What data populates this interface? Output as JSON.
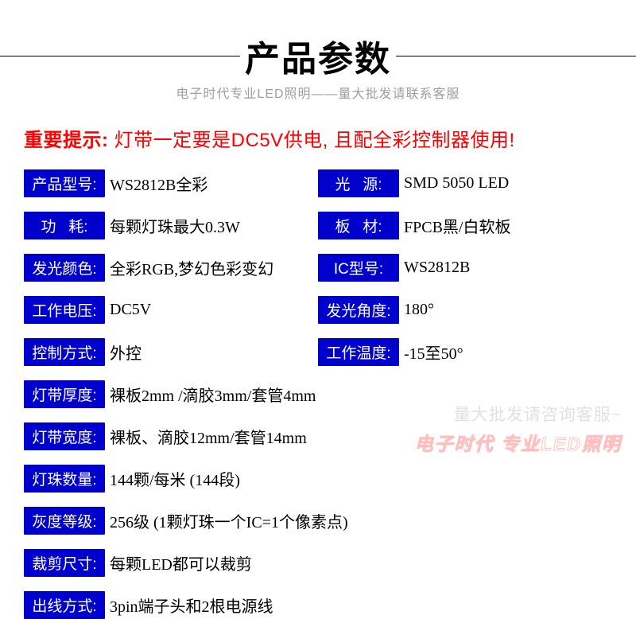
{
  "header": {
    "title": "产品参数",
    "subtitle": "电子时代专业LED照明——量大批发请联系客服"
  },
  "notice": {
    "lead": "重要提示: ",
    "body": "灯带一定要是DC5V供电, 且配全彩控制器使用!"
  },
  "specs": {
    "left": [
      {
        "label": "产品型号:",
        "value": "WS2812B全彩"
      },
      {
        "label": "功   耗:",
        "value": "每颗灯珠最大0.3W"
      },
      {
        "label": "发光颜色:",
        "value": "全彩RGB,梦幻色彩变幻"
      },
      {
        "label": "工作电压:",
        "value": "DC5V"
      },
      {
        "label": "控制方式:",
        "value": "外控"
      }
    ],
    "right": [
      {
        "label": "光   源:",
        "value": "SMD 5050 LED"
      },
      {
        "label": "板   材:",
        "value": "FPCB黑/白软板"
      },
      {
        "label": " IC型号: ",
        "value": "WS2812B"
      },
      {
        "label": "发光角度:",
        "value": "180°"
      },
      {
        "label": "工作温度:",
        "value": "-15至50°"
      }
    ],
    "full": [
      {
        "label": "灯带厚度:",
        "value": "裸板2mm  /滴胶3mm/套管4mm"
      },
      {
        "label": "灯带宽度:",
        "value": "裸板、滴胶12mm/套管14mm"
      },
      {
        "label": "灯珠数量:",
        "value": "144颗/每米 (144段)"
      },
      {
        "label": "灰度等级:",
        "value": "256级 (1颗灯珠一个IC=1个像素点)"
      },
      {
        "label": "裁剪尺寸:",
        "value": "每颗LED都可以裁剪"
      },
      {
        "label": "出线方式:",
        "value": " 3pin端子头和2根电源线"
      }
    ]
  },
  "watermark": {
    "line1": "量大批发请咨询客服~",
    "line2": "电子时代 专业LED照明"
  },
  "colors": {
    "label_bg": "#0000cc",
    "label_fg": "#ffffff",
    "notice": "#ff0000",
    "subtitle": "#9e9e9e"
  }
}
